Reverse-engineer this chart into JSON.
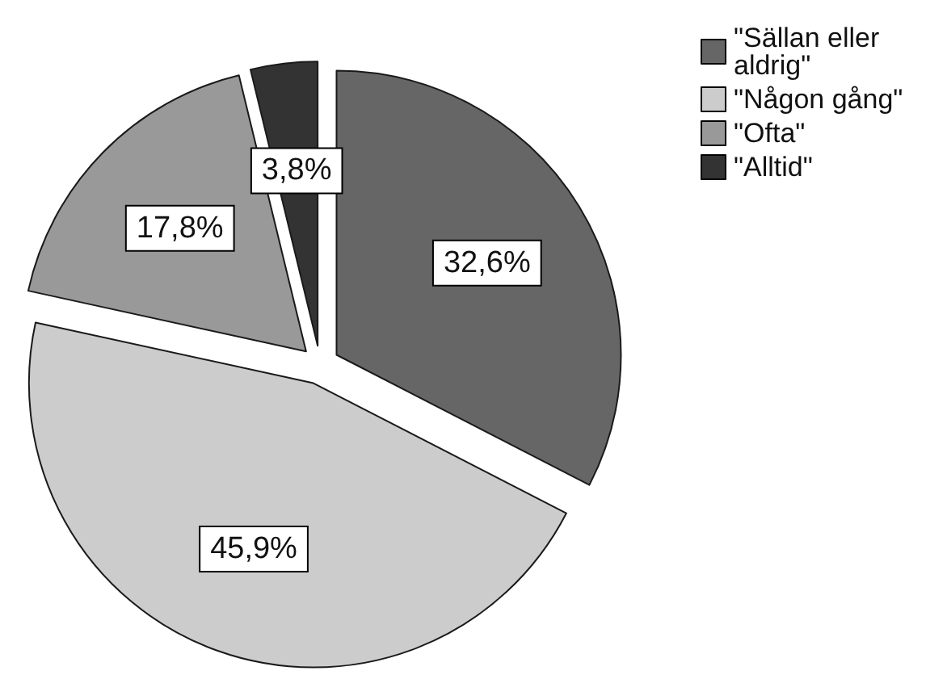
{
  "chart_data": {
    "type": "pie",
    "categories": [
      "\"Sällan eller aldrig\"",
      "\"Någon gång\"",
      "\"Ofta\"",
      "\"Alltid\""
    ],
    "values": [
      32.6,
      45.9,
      17.8,
      3.8
    ],
    "colors": [
      "#666666",
      "#cccccc",
      "#999999",
      "#333333"
    ],
    "value_labels": [
      "32,6%",
      "45,9%",
      "17,8%",
      "3,8%"
    ],
    "legend": "top right"
  }
}
